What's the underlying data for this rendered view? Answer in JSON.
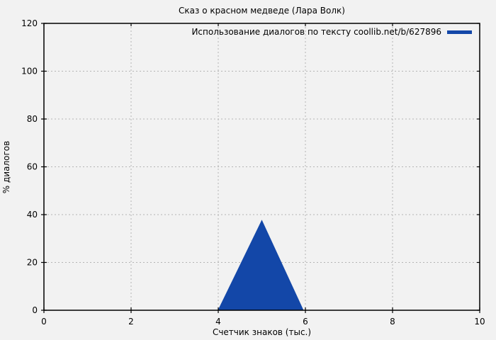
{
  "colors": {
    "background": "#f2f2f2",
    "series_blue": "#1347a8",
    "grid": "#b4b4b4",
    "axis": "#000000"
  },
  "chart_data": {
    "type": "area",
    "title": "Сказ о красном медведе (Лара Волк)",
    "xlabel": "Счетчик знаков (тыс.)",
    "ylabel": "% диалогов",
    "xlim": [
      0,
      10
    ],
    "ylim": [
      0,
      120
    ],
    "x_ticks": [
      0,
      2,
      4,
      6,
      8,
      10
    ],
    "y_ticks": [
      0,
      20,
      40,
      60,
      80,
      100,
      120
    ],
    "grid": true,
    "grid_style": "dashed",
    "legend_position": "top-right-inside",
    "series": [
      {
        "name": "Использование диалогов по тексту coollib.net/b/627896",
        "x": [
          4.0,
          5.0,
          5.95
        ],
        "y": [
          0,
          37.5,
          0
        ],
        "color": "#1347a8",
        "fill": true
      }
    ]
  }
}
